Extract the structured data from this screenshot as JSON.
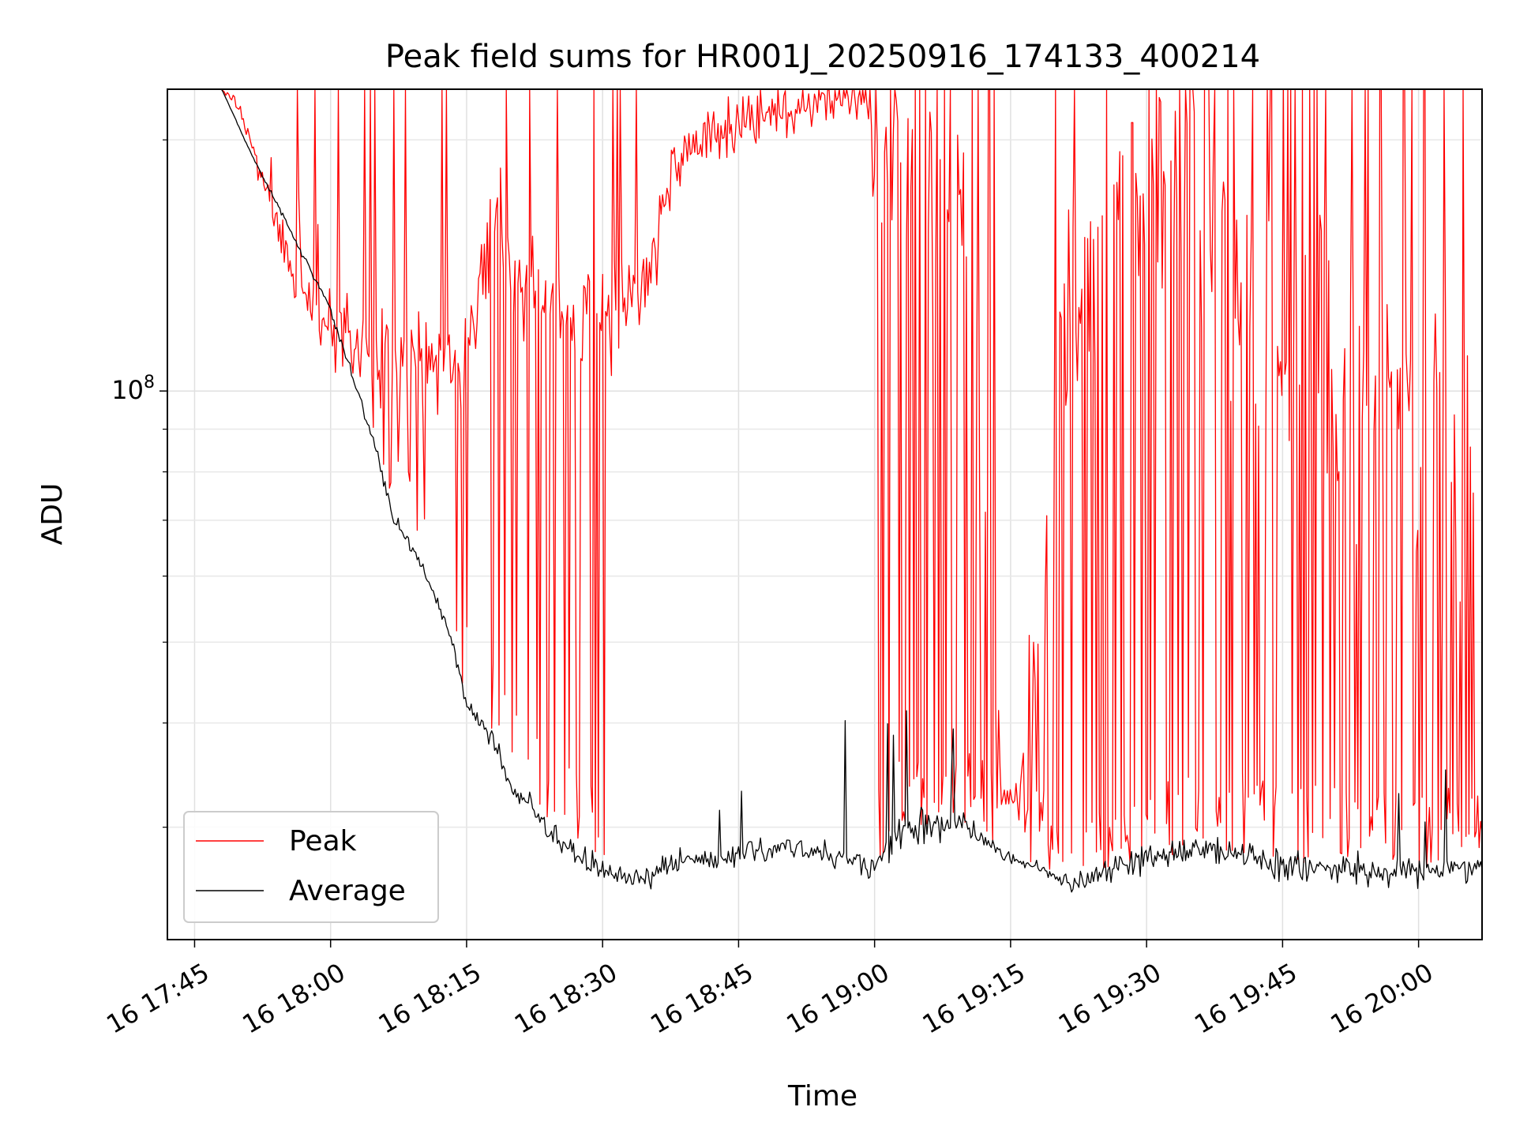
{
  "chart_data": {
    "type": "line",
    "title": "Peak field sums for HR001J_20250916_174133_400214",
    "xlabel": "Time",
    "ylabel": "ADU",
    "yscale": "log",
    "ylim": [
      22000000,
      230000000
    ],
    "xlim_minutes": [
      -3,
      142
    ],
    "x_tick_labels": [
      "16 17:45",
      "16 18:00",
      "16 18:15",
      "16 18:30",
      "16 18:45",
      "16 19:00",
      "16 19:15",
      "16 19:30",
      "16 19:45",
      "16 20:00"
    ],
    "x_tick_minutes": [
      0,
      15,
      30,
      45,
      60,
      75,
      90,
      105,
      120,
      135
    ],
    "y_major_ticks": [
      {
        "value": 100000000,
        "base": "10",
        "exp": "8"
      }
    ],
    "y_minor_ticks": [
      30000000,
      40000000,
      50000000,
      60000000,
      70000000,
      80000000,
      90000000,
      200000000
    ],
    "grid": true,
    "legend_position": "lower-left",
    "series": [
      {
        "name": "Peak",
        "color": "#ff0000",
        "anchors": [
          [
            -3,
            230000000
          ],
          [
            3,
            230000000
          ],
          [
            5,
            220000000
          ],
          [
            6,
            200000000
          ],
          [
            8,
            170000000
          ],
          [
            10,
            145000000
          ],
          [
            12,
            132000000
          ],
          [
            14,
            122000000
          ],
          [
            16,
            116000000
          ],
          [
            18,
            112000000
          ],
          [
            20,
            110000000
          ],
          [
            25,
            108000000
          ],
          [
            30,
            112000000
          ],
          [
            33,
            160000000
          ],
          [
            36,
            135000000
          ],
          [
            40,
            125000000
          ],
          [
            44,
            118000000
          ],
          [
            47,
            122000000
          ],
          [
            50,
            140000000
          ],
          [
            54,
            200000000
          ],
          [
            58,
            205000000
          ],
          [
            62,
            215000000
          ],
          [
            66,
            215000000
          ],
          [
            70,
            225000000
          ],
          [
            74,
            220000000
          ],
          [
            75.5,
            190000000
          ],
          [
            79,
            180000000
          ],
          [
            85,
            150000000
          ],
          [
            88,
            50000000
          ],
          [
            89,
            32000000
          ],
          [
            91,
            33000000
          ],
          [
            93,
            50000000
          ],
          [
            96,
            120000000
          ],
          [
            100,
            160000000
          ],
          [
            104,
            190000000
          ],
          [
            106,
            175000000
          ],
          [
            110,
            150000000
          ],
          [
            116,
            130000000
          ],
          [
            120,
            122000000
          ],
          [
            125,
            115000000
          ],
          [
            130,
            100000000
          ],
          [
            135,
            95000000
          ],
          [
            142,
            90000000
          ]
        ],
        "noise": [
          [
            -3,
            0.0
          ],
          [
            3,
            0.0
          ],
          [
            6,
            0.05
          ],
          [
            10,
            0.1
          ],
          [
            16,
            0.14
          ],
          [
            22,
            0.17
          ],
          [
            32,
            0.2
          ],
          [
            45,
            0.2
          ],
          [
            53,
            0.12
          ],
          [
            62,
            0.1
          ],
          [
            73,
            0.08
          ],
          [
            75.5,
            0.3
          ],
          [
            80,
            0.5
          ],
          [
            87,
            0.3
          ],
          [
            89,
            0.08
          ],
          [
            91,
            0.08
          ],
          [
            92,
            0.45
          ],
          [
            100,
            0.5
          ],
          [
            115,
            0.55
          ],
          [
            142,
            0.55
          ]
        ],
        "spike_prob": [
          [
            -3,
            0.0
          ],
          [
            3,
            0.0
          ],
          [
            12,
            0.15
          ],
          [
            32,
            0.18
          ],
          [
            45,
            0.22
          ],
          [
            50,
            0.05
          ],
          [
            53,
            0.0
          ],
          [
            75,
            0.0
          ],
          [
            75.5,
            0.42
          ],
          [
            87,
            0.45
          ],
          [
            89,
            0.05
          ],
          [
            91,
            0.05
          ],
          [
            92,
            0.4
          ],
          [
            115,
            0.38
          ],
          [
            142,
            0.45
          ]
        ],
        "clip_max": 230000000
      },
      {
        "name": "Average",
        "color": "#000000",
        "anchors": [
          [
            -3,
            230000000
          ],
          [
            3,
            230000000
          ],
          [
            6,
            195000000
          ],
          [
            10,
            160000000
          ],
          [
            15,
            125000000
          ],
          [
            18,
            100000000
          ],
          [
            20,
            85000000
          ],
          [
            22,
            70000000
          ],
          [
            25,
            62000000
          ],
          [
            28,
            52000000
          ],
          [
            30,
            42000000
          ],
          [
            33,
            38000000
          ],
          [
            35,
            33000000
          ],
          [
            37,
            32000000
          ],
          [
            40,
            29000000
          ],
          [
            43,
            27500000
          ],
          [
            45,
            26500000
          ],
          [
            48,
            26000000
          ],
          [
            52,
            27000000
          ],
          [
            56,
            27500000
          ],
          [
            60,
            28000000
          ],
          [
            65,
            28500000
          ],
          [
            68,
            28000000
          ],
          [
            72,
            27500000
          ],
          [
            75,
            27000000
          ],
          [
            78,
            29500000
          ],
          [
            82,
            30500000
          ],
          [
            85,
            30200000
          ],
          [
            88,
            28500000
          ],
          [
            90,
            27500000
          ],
          [
            93,
            27000000
          ],
          [
            95,
            26000000
          ],
          [
            97,
            25500000
          ],
          [
            100,
            26500000
          ],
          [
            105,
            27500000
          ],
          [
            110,
            28000000
          ],
          [
            115,
            28000000
          ],
          [
            120,
            27000000
          ],
          [
            125,
            27000000
          ],
          [
            130,
            26500000
          ],
          [
            135,
            26500000
          ],
          [
            142,
            27000000
          ]
        ],
        "noise": [
          [
            -3,
            0.0
          ],
          [
            3,
            0.0
          ],
          [
            10,
            0.01
          ],
          [
            20,
            0.02
          ],
          [
            30,
            0.035
          ],
          [
            45,
            0.045
          ],
          [
            75,
            0.045
          ],
          [
            80,
            0.07
          ],
          [
            86,
            0.03
          ],
          [
            90,
            0.02
          ],
          [
            96,
            0.03
          ],
          [
            100,
            0.05
          ],
          [
            142,
            0.05
          ]
        ],
        "spike_prob": [
          [
            -3,
            0.0
          ],
          [
            45,
            0.0
          ],
          [
            60,
            0.02
          ],
          [
            75,
            0.03
          ],
          [
            80,
            0.06
          ],
          [
            86,
            0.02
          ],
          [
            142,
            0.02
          ]
        ],
        "clip_max": 230000000
      }
    ]
  }
}
